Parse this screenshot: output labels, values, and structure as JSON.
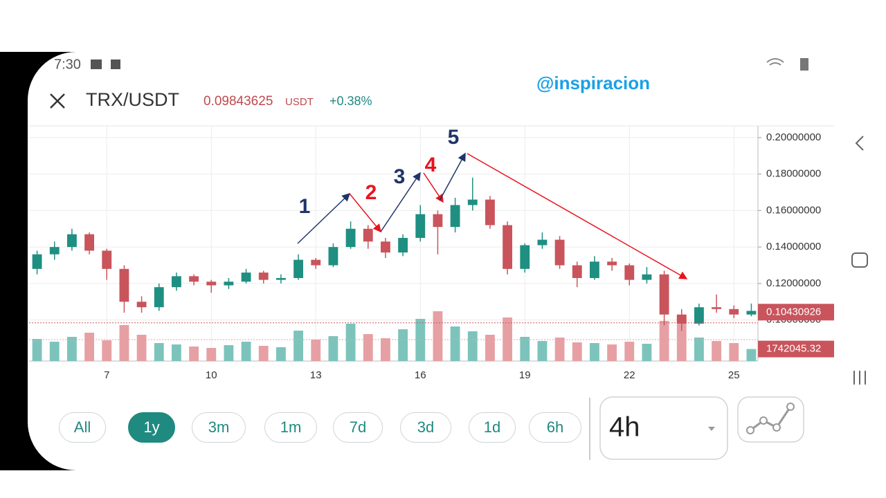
{
  "status_bar": {
    "time": "7:30"
  },
  "header": {
    "pair": "TRX/USDT",
    "unit": "USDT",
    "change": "+0.38%"
  },
  "watermark": "@inspiracion",
  "chart_data": {
    "type": "candlestick",
    "current_price": 0.09843625,
    "last_price": 0.10430926,
    "x": [
      5,
      5.5,
      6,
      6.5,
      7,
      7.5,
      8,
      8.5,
      9,
      9.5,
      10,
      10.5,
      11,
      11.5,
      12,
      12.5,
      13,
      13.5,
      14,
      14.5,
      15,
      15.5,
      16,
      16.5,
      17,
      17.5,
      18,
      18.5,
      19,
      19.5,
      20,
      20.5,
      21,
      21.5,
      22,
      22.5,
      23,
      23.5,
      24,
      24.5,
      25,
      25.5
    ],
    "ohlc": [
      [
        0.128,
        0.138,
        0.125,
        0.136
      ],
      [
        0.136,
        0.143,
        0.133,
        0.14
      ],
      [
        0.14,
        0.15,
        0.138,
        0.147
      ],
      [
        0.147,
        0.148,
        0.136,
        0.138
      ],
      [
        0.138,
        0.139,
        0.122,
        0.128
      ],
      [
        0.128,
        0.13,
        0.104,
        0.11
      ],
      [
        0.11,
        0.113,
        0.104,
        0.107
      ],
      [
        0.107,
        0.12,
        0.105,
        0.118
      ],
      [
        0.118,
        0.126,
        0.116,
        0.124
      ],
      [
        0.124,
        0.125,
        0.119,
        0.121
      ],
      [
        0.121,
        0.122,
        0.115,
        0.119
      ],
      [
        0.119,
        0.123,
        0.117,
        0.121
      ],
      [
        0.121,
        0.128,
        0.12,
        0.126
      ],
      [
        0.126,
        0.127,
        0.12,
        0.122
      ],
      [
        0.122,
        0.125,
        0.12,
        0.123
      ],
      [
        0.123,
        0.136,
        0.122,
        0.133
      ],
      [
        0.133,
        0.134,
        0.128,
        0.13
      ],
      [
        0.13,
        0.142,
        0.129,
        0.14
      ],
      [
        0.14,
        0.154,
        0.139,
        0.15
      ],
      [
        0.15,
        0.152,
        0.139,
        0.143
      ],
      [
        0.143,
        0.145,
        0.134,
        0.137
      ],
      [
        0.137,
        0.147,
        0.135,
        0.145
      ],
      [
        0.145,
        0.163,
        0.143,
        0.158
      ],
      [
        0.158,
        0.16,
        0.136,
        0.151
      ],
      [
        0.151,
        0.167,
        0.148,
        0.163
      ],
      [
        0.163,
        0.178,
        0.16,
        0.166
      ],
      [
        0.166,
        0.168,
        0.15,
        0.152
      ],
      [
        0.152,
        0.154,
        0.125,
        0.128
      ],
      [
        0.128,
        0.142,
        0.126,
        0.141
      ],
      [
        0.141,
        0.148,
        0.139,
        0.144
      ],
      [
        0.144,
        0.146,
        0.128,
        0.13
      ],
      [
        0.13,
        0.132,
        0.118,
        0.123
      ],
      [
        0.123,
        0.135,
        0.122,
        0.132
      ],
      [
        0.132,
        0.134,
        0.127,
        0.13
      ],
      [
        0.13,
        0.131,
        0.119,
        0.122
      ],
      [
        0.122,
        0.129,
        0.12,
        0.125
      ],
      [
        0.125,
        0.127,
        0.097,
        0.103
      ],
      [
        0.103,
        0.106,
        0.094,
        0.098
      ],
      [
        0.098,
        0.109,
        0.097,
        0.107
      ],
      [
        0.107,
        0.114,
        0.104,
        0.106
      ],
      [
        0.106,
        0.108,
        0.101,
        0.103
      ],
      [
        0.103,
        0.109,
        0.102,
        0.105
      ]
    ],
    "volume": [
      3200000,
      2800000,
      3500000,
      4100000,
      3000000,
      5200000,
      3800000,
      2600000,
      2400000,
      2100000,
      1900000,
      2300000,
      2800000,
      2200000,
      2000000,
      4400000,
      3100000,
      3600000,
      5400000,
      3900000,
      3300000,
      4600000,
      6100000,
      7200000,
      5000000,
      4300000,
      3800000,
      6300000,
      3500000,
      2900000,
      3400000,
      2700000,
      2600000,
      2400000,
      2800000,
      2500000,
      5800000,
      6500000,
      3400000,
      2900000,
      2600000,
      1742045.32
    ],
    "up_color": "#1f8f82",
    "down_color": "#c9545c",
    "up_volume_color": "#7cc4bb",
    "down_volume_color": "#e6a0a4",
    "xlim": [
      4.77,
      25.69
    ],
    "xticks": [
      7,
      10,
      13,
      16,
      19,
      22,
      25
    ],
    "ylim": [
      0.0775,
      0.2064
    ],
    "yticks": [
      {
        "value": 0.2,
        "label": "0.20000000"
      },
      {
        "value": 0.18,
        "label": "0.18000000"
      },
      {
        "value": 0.16,
        "label": "0.16000000"
      },
      {
        "value": 0.14,
        "label": "0.14000000"
      },
      {
        "value": 0.12,
        "label": "0.12000000"
      },
      {
        "value": 0.1,
        "label": "0.10000000"
      }
    ],
    "volume_lim": [
      0,
      9000000
    ],
    "grid": true,
    "annotations": [
      {
        "label": "1",
        "color": "#1f3468"
      },
      {
        "label": "2",
        "color": "#e8141c"
      },
      {
        "label": "3",
        "color": "#1f3468"
      },
      {
        "label": "4",
        "color": "#e8141c"
      },
      {
        "label": "5",
        "color": "#1f3468"
      }
    ]
  },
  "timeframes": {
    "options": [
      "All",
      "1y",
      "3m",
      "1m",
      "7d",
      "3d",
      "1d",
      "6h"
    ],
    "selected": 1
  },
  "interval": "4h"
}
